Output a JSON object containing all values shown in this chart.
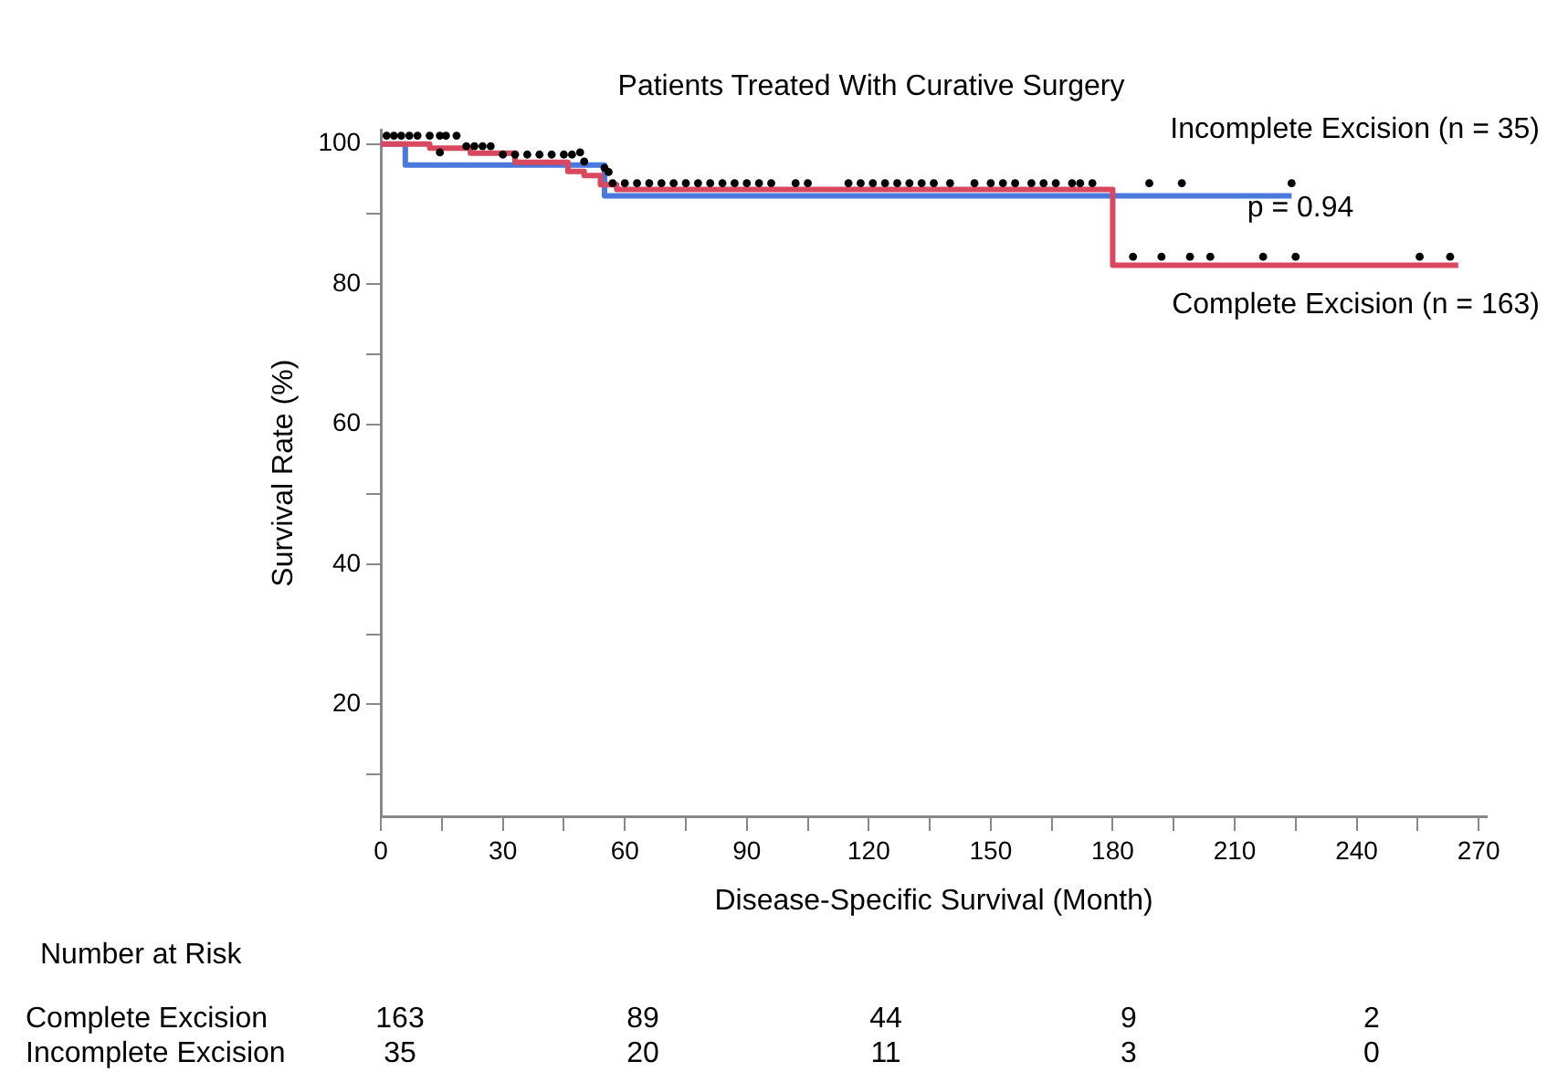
{
  "chart_data": {
    "type": "step",
    "title": "Patients Treated With Curative Surgery",
    "xlabel": "Disease-Specific Survival (Month)",
    "ylabel": "Survival Rate (%)",
    "xlim": [
      0,
      272
    ],
    "xticks": [
      0,
      {
        "value": 15,
        "label": null
      },
      30,
      {
        "value": 45,
        "label": null
      },
      60,
      {
        "value": 75,
        "label": null
      },
      90,
      {
        "value": 105,
        "label": null
      },
      120,
      {
        "value": 135,
        "label": null
      },
      150,
      {
        "value": 165,
        "label": null
      },
      180,
      {
        "value": 195,
        "label": null
      },
      210,
      {
        "value": 225,
        "label": null
      },
      240,
      {
        "value": 255,
        "label": null
      },
      270
    ],
    "ylim": [
      4,
      102
    ],
    "yticks": [
      {
        "value": 10,
        "label": null
      },
      20,
      {
        "value": 30,
        "label": null
      },
      40,
      {
        "value": 50,
        "label": null
      },
      60,
      {
        "value": 70,
        "label": null
      },
      80,
      {
        "value": 90,
        "label": null
      },
      100
    ],
    "grid": false,
    "legend": false,
    "series": [
      {
        "name": "Complete Excision (n = 163)",
        "color": "#d9485e",
        "x": [
          0,
          12,
          22,
          33,
          46,
          50,
          54,
          58,
          180,
          265
        ],
        "values": [
          100,
          99.4,
          98.7,
          97.4,
          96.1,
          95.5,
          94.2,
          93.5,
          82.7,
          82.7
        ]
      },
      {
        "name": "Incomplete Excision (n = 35)",
        "color": "#4a78dc",
        "x": [
          0,
          6,
          55,
          224
        ],
        "values": [
          100,
          97,
          92.6,
          92.6
        ]
      },
      {
        "type": "scatter",
        "color": "#000000",
        "marker": "circle",
        "x": [
          1.4,
          3.2,
          5,
          7,
          9,
          12,
          14.5,
          16,
          18.6,
          14.5,
          21,
          23,
          25,
          27,
          30,
          33,
          36,
          39,
          42,
          45,
          47,
          49,
          50,
          55,
          56,
          57,
          60,
          63,
          66,
          69,
          72,
          75,
          78,
          81,
          84,
          87,
          90,
          93,
          96,
          102,
          105,
          115,
          118,
          121,
          124,
          127,
          130,
          133,
          136,
          140,
          146,
          150,
          153,
          156,
          160,
          163,
          166,
          170,
          172,
          175,
          189,
          197,
          224,
          185,
          192,
          199,
          204,
          217,
          225,
          255.5,
          263
        ],
        "values": [
          101.2,
          101.2,
          101.2,
          101.2,
          101.2,
          101.2,
          101.2,
          101.2,
          101.2,
          98.8,
          99.7,
          99.7,
          99.7,
          99.7,
          98.5,
          98.5,
          98.5,
          98.5,
          98.5,
          98.5,
          98.5,
          98.8,
          97.5,
          96.6,
          96,
          94.4,
          94.4,
          94.4,
          94.4,
          94.4,
          94.4,
          94.4,
          94.4,
          94.4,
          94.4,
          94.4,
          94.4,
          94.4,
          94.4,
          94.4,
          94.4,
          94.4,
          94.4,
          94.4,
          94.4,
          94.4,
          94.4,
          94.4,
          94.4,
          94.4,
          94.4,
          94.4,
          94.4,
          94.4,
          94.4,
          94.4,
          94.4,
          94.4,
          94.4,
          94.4,
          94.4,
          94.4,
          94.4,
          83.9,
          83.9,
          83.9,
          83.9,
          83.9,
          83.9,
          83.9,
          83.9
        ]
      }
    ],
    "annotations": [
      "p = 0.94",
      "Number at Risk",
      "Complete Excision",
      "163",
      "89",
      "44",
      "9",
      "2",
      "Incomplete Excision",
      "35",
      "20",
      "11",
      "3",
      "0"
    ]
  }
}
